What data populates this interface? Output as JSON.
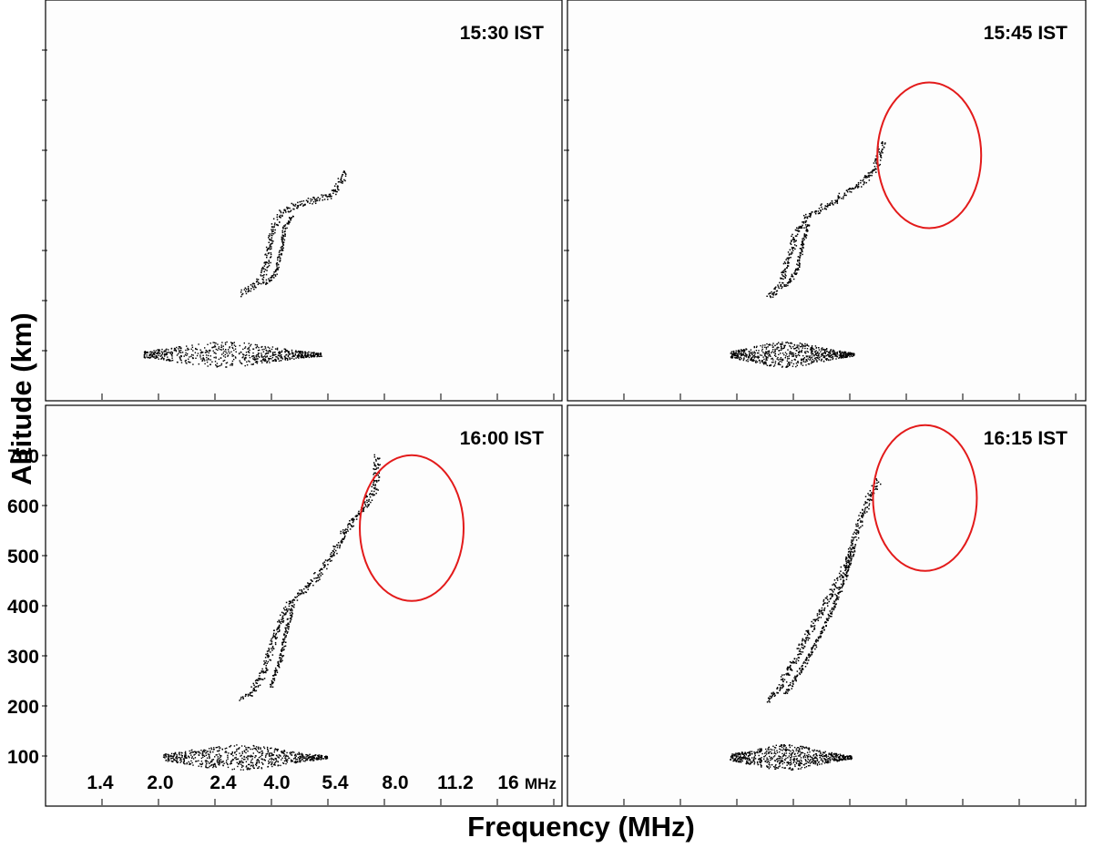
{
  "chart_data": {
    "type": "scatter",
    "description_panels": 4,
    "ylabel": "Altitude (km)",
    "xlabel": "Frequency (MHz)",
    "y_ticks": [
      100,
      200,
      300,
      400,
      500,
      600,
      700
    ],
    "x_ticks": [
      "1.4",
      "2.0",
      "2.4",
      "4.0",
      "5.4",
      "8.0",
      "11.2",
      "16"
    ],
    "x_unit": "MHz",
    "ylim": [
      0,
      800
    ],
    "highlight_color": "#e31b1b",
    "trace_color": "#000000",
    "panels": [
      {
        "time_label": "15:30 IST",
        "o_trace": [
          [
            3.0,
            215
          ],
          [
            3.2,
            222
          ],
          [
            3.5,
            240
          ],
          [
            3.7,
            280
          ],
          [
            3.8,
            335
          ],
          [
            4.0,
            370
          ],
          [
            4.4,
            388
          ],
          [
            5.0,
            398
          ],
          [
            5.8,
            410
          ],
          [
            6.3,
            430
          ],
          [
            6.6,
            460
          ]
        ],
        "x_trace": [
          [
            3.6,
            235
          ],
          [
            3.9,
            250
          ],
          [
            4.1,
            300
          ],
          [
            4.2,
            345
          ],
          [
            4.5,
            370
          ]
        ],
        "e_layer": {
          "altitude": 115,
          "f_start": 1.9,
          "f_end": 5.5
        },
        "highlight": null
      },
      {
        "time_label": "15:45 IST",
        "o_trace": [
          [
            3.1,
            210
          ],
          [
            3.3,
            215
          ],
          [
            3.5,
            240
          ],
          [
            3.7,
            290
          ],
          [
            3.9,
            340
          ],
          [
            4.3,
            370
          ],
          [
            5.0,
            395
          ],
          [
            5.6,
            415
          ],
          [
            6.5,
            440
          ],
          [
            7.0,
            465
          ],
          [
            7.3,
            520
          ]
        ],
        "x_trace": [
          [
            3.6,
            230
          ],
          [
            3.9,
            260
          ],
          [
            4.1,
            320
          ],
          [
            4.3,
            355
          ]
        ],
        "e_layer": {
          "altitude": 115,
          "f_start": 2.6,
          "f_end": 6.0
        },
        "highlight": {
          "label": "ring",
          "f_center": 7.8,
          "alt_center": 490
        }
      },
      {
        "time_label": "16:00 IST",
        "o_trace": [
          [
            3.0,
            215
          ],
          [
            3.3,
            230
          ],
          [
            3.6,
            270
          ],
          [
            3.9,
            340
          ],
          [
            4.3,
            400
          ],
          [
            5.2,
            450
          ],
          [
            6.0,
            500
          ],
          [
            6.6,
            550
          ],
          [
            7.0,
            575
          ],
          [
            7.5,
            600
          ],
          [
            8.0,
            640
          ],
          [
            8.1,
            700
          ]
        ],
        "x_trace": [
          [
            3.8,
            240
          ],
          [
            4.1,
            300
          ],
          [
            4.3,
            360
          ],
          [
            4.5,
            400
          ]
        ],
        "e_layer": {
          "altitude": 120,
          "f_start": 2.1,
          "f_end": 5.8
        },
        "highlight": {
          "label": "ring",
          "f_center": 8.0,
          "alt_center": 555
        }
      },
      {
        "time_label": "16:15 IST",
        "o_trace": [
          [
            3.1,
            210
          ],
          [
            3.4,
            235
          ],
          [
            3.9,
            300
          ],
          [
            4.5,
            370
          ],
          [
            5.1,
            430
          ],
          [
            5.6,
            480
          ],
          [
            6.2,
            560
          ],
          [
            6.7,
            620
          ],
          [
            7.1,
            650
          ]
        ],
        "x_trace": [
          [
            3.6,
            225
          ],
          [
            4.3,
            300
          ],
          [
            5.0,
            380
          ],
          [
            5.6,
            460
          ],
          [
            6.0,
            520
          ]
        ],
        "e_layer": {
          "altitude": 120,
          "f_start": 2.6,
          "f_end": 5.9
        },
        "highlight": {
          "label": "ring",
          "f_center": 7.6,
          "alt_center": 615
        }
      }
    ]
  }
}
